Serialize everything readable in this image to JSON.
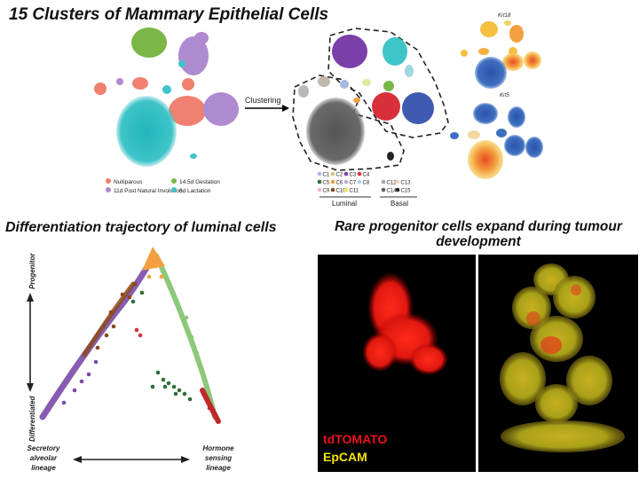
{
  "titles": {
    "main": "15 Clusters of Mammary Epithelial Cells",
    "trajectory": "Differentiation trajectory of luminal cells",
    "progenitor": "Rare progenitor cells expand during tumour development"
  },
  "umap": {
    "arrow_label": "Clustering",
    "legend": [
      "Nulliparous",
      "14.5d Gestation",
      "11d Post Natural Involution",
      "6d Lactation"
    ],
    "legend_colors": [
      "#f08070",
      "#7ab648",
      "#b08ad0",
      "#3fc4c8"
    ]
  },
  "clusters": {
    "luminal_label": "Luminal",
    "basal_label": "Basal",
    "luminal": [
      {
        "id": "C1",
        "color": "#a8b8e0"
      },
      {
        "id": "C2",
        "color": "#d8c27a"
      },
      {
        "id": "C3",
        "color": "#7a3fa8"
      },
      {
        "id": "C4",
        "color": "#d8303a"
      },
      {
        "id": "C5",
        "color": "#2f6e3a"
      },
      {
        "id": "C6",
        "color": "#f0a040"
      },
      {
        "id": "C7",
        "color": "#c8a8e0"
      },
      {
        "id": "C8",
        "color": "#a0d8e0"
      },
      {
        "id": "C9",
        "color": "#f0b8c8"
      },
      {
        "id": "C10",
        "color": "#8a4a1a"
      },
      {
        "id": "C11",
        "color": "#f0e060"
      }
    ],
    "basal": [
      {
        "id": "C12",
        "color": "#a8a8a8"
      },
      {
        "id": "C13",
        "color": "#f0d8c0"
      },
      {
        "id": "C14",
        "color": "#606060"
      },
      {
        "id": "C15",
        "color": "#222222"
      }
    ]
  },
  "markers": {
    "top": "Krt18",
    "bottom": "Krt5"
  },
  "trajectory": {
    "y_top": "Progenitor",
    "y_bottom": "Differentiated",
    "x_left": [
      "Secretory",
      "alveolar",
      "lineage"
    ],
    "x_right": [
      "Hormone",
      "sensing",
      "lineage"
    ]
  },
  "microscopy": {
    "label1": "tdTOMATO",
    "label2": "EpCAM"
  }
}
